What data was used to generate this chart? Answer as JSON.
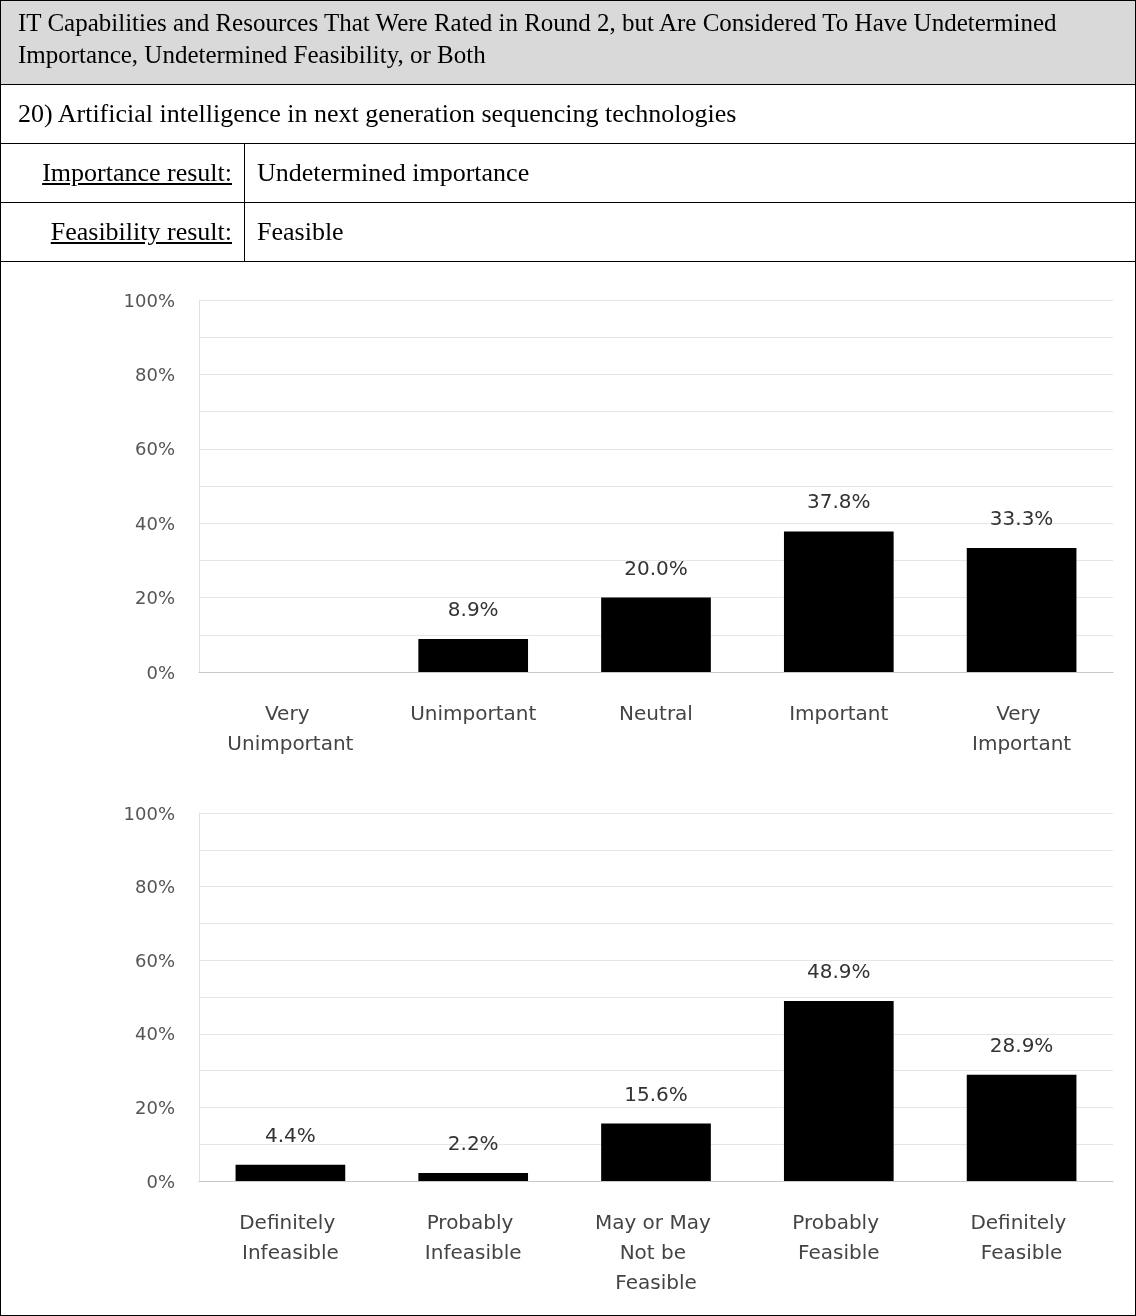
{
  "chart_data": [
    {
      "type": "bar",
      "title": "IT Capabilities and Resources That Were Rated in Round 2, but Are Considered To Have Undetermined Importance, Undetermined Feasibility, or Both",
      "subtitle": "20) Artificial intelligence in next generation sequencing technologies",
      "annotations": [
        "Importance result:",
        "Undetermined importance",
        "Feasibility result:",
        "Feasible"
      ],
      "categories": [
        "Very Unimportant",
        "Unimportant",
        "Neutral",
        "Important",
        "Very Important"
      ],
      "values": [
        0,
        8.9,
        20.0,
        37.8,
        33.3
      ],
      "color": "#000000",
      "value_labels": [
        null,
        "8.9%",
        "20.0%",
        "37.8%",
        "33.3%"
      ],
      "ylim": [
        0,
        100
      ],
      "yticks": [
        {
          "value": 0,
          "label": "0%"
        },
        {
          "value": 10,
          "label": null
        },
        {
          "value": 20,
          "label": "20%"
        },
        {
          "value": 30,
          "label": null
        },
        {
          "value": 40,
          "label": "40%"
        },
        {
          "value": 50,
          "label": null
        },
        {
          "value": 60,
          "label": "60%"
        },
        {
          "value": 70,
          "label": null
        },
        {
          "value": 80,
          "label": "80%"
        },
        {
          "value": 90,
          "label": null
        },
        {
          "value": 100,
          "label": "100%"
        }
      ],
      "grid": "y"
    },
    {
      "type": "bar",
      "categories": [
        "Definitely Infeasible",
        "Probably Infeasible",
        "May or May Not be Feasible",
        "Probably Feasible",
        "Definitely Feasible"
      ],
      "values": [
        4.4,
        2.2,
        15.6,
        48.9,
        28.9
      ],
      "color": "#000000",
      "value_labels": [
        "4.4%",
        "2.2%",
        "15.6%",
        "48.9%",
        "28.9%"
      ],
      "ylim": [
        0,
        100
      ],
      "yticks": [
        {
          "value": 0,
          "label": "0%"
        },
        {
          "value": 10,
          "label": null
        },
        {
          "value": 20,
          "label": "20%"
        },
        {
          "value": 30,
          "label": null
        },
        {
          "value": 40,
          "label": "40%"
        },
        {
          "value": 50,
          "label": null
        },
        {
          "value": 60,
          "label": "60%"
        },
        {
          "value": 70,
          "label": null
        },
        {
          "value": 80,
          "label": "80%"
        },
        {
          "value": 90,
          "label": null
        },
        {
          "value": 100,
          "label": "100%"
        }
      ],
      "grid": "y"
    }
  ]
}
